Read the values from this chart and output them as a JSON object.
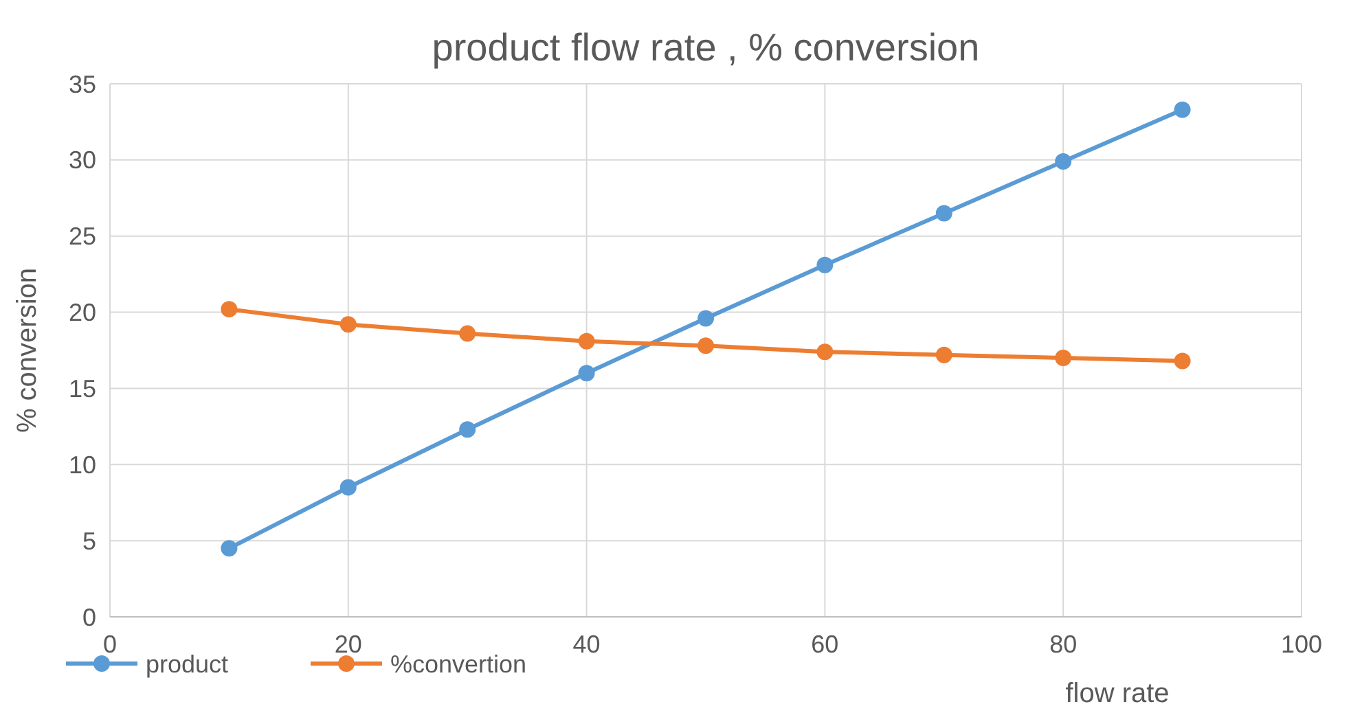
{
  "chart_data": {
    "type": "line",
    "title": "product flow rate , % conversion",
    "xlabel": "flow rate",
    "ylabel": "% conversion",
    "x": [
      10,
      20,
      30,
      40,
      50,
      60,
      70,
      80,
      90
    ],
    "series": [
      {
        "name": "product",
        "color": "#5b9bd5",
        "values": [
          4.5,
          8.5,
          12.3,
          16.0,
          19.6,
          23.1,
          26.5,
          29.9,
          33.3
        ]
      },
      {
        "name": "%convertion",
        "color": "#ed7d31",
        "values": [
          20.2,
          19.2,
          18.6,
          18.1,
          17.8,
          17.4,
          17.2,
          17.0,
          16.8
        ]
      }
    ],
    "xlim": [
      0,
      100
    ],
    "xticks": [
      0,
      20,
      40,
      60,
      80,
      100
    ],
    "ylim": [
      0,
      35
    ],
    "yticks": [
      0,
      5,
      10,
      15,
      20,
      25,
      30,
      35
    ],
    "grid": true,
    "legend": "bottom left",
    "marker": "circle",
    "line_style": "solid"
  }
}
